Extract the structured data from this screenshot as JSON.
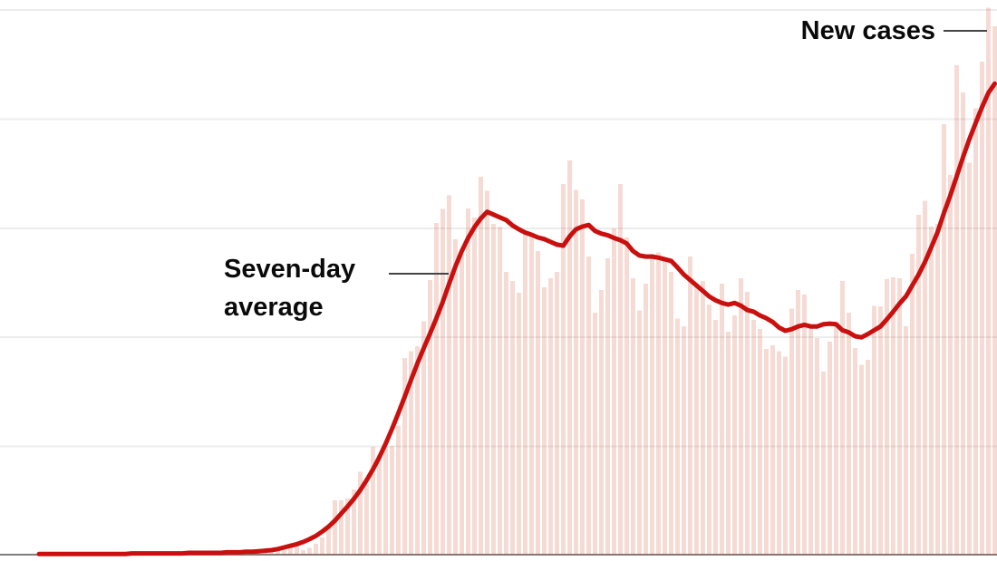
{
  "chart_data": {
    "type": "combo-bar-line",
    "title": "",
    "xlabel": "",
    "ylabel": "",
    "x_tick_labels": [],
    "ylim": [
      0,
      102
    ],
    "gridline_values": [
      20,
      40,
      60,
      80,
      100
    ],
    "grid": "horizontal",
    "legend": "inline annotations with leader lines",
    "scale_note": "no numeric axis labels shown; values are relative with top gridline = 100",
    "series": [
      {
        "name": "New cases",
        "type": "bar",
        "color": "#f6dbd6",
        "values": [
          0.2,
          0.3,
          0.2,
          0.3,
          0.3,
          0.2,
          0.3,
          0.3,
          0.4,
          0.3,
          0.3,
          0.4,
          0.3,
          0.4,
          0.4,
          0.3,
          0.4,
          0.4,
          0.5,
          0.4,
          0.4,
          0.5,
          0.4,
          0.5,
          0.5,
          0.4,
          0.5,
          0.6,
          0.5,
          0.6,
          0.6,
          0.5,
          0.7,
          0.6,
          0.8,
          0.8,
          0.9,
          1.0,
          1.1,
          1.6,
          1.9,
          1.0,
          1.4,
          2.2,
          3.3,
          5.5,
          10.1,
          10.1,
          10.5,
          12.1,
          15.4,
          13.0,
          19.9,
          18.5,
          20.0,
          20.1,
          23.8,
          36.2,
          37.5,
          38.4,
          42.9,
          50.5,
          61.0,
          63.5,
          66.0,
          58.0,
          55.3,
          63.6,
          62.0,
          69.4,
          66.9,
          60.8,
          60.3,
          52.0,
          50.3,
          48.2,
          59.0,
          58.6,
          55.8,
          49.2,
          50.8,
          52.0,
          68.1,
          72.4,
          67.0,
          65.3,
          54.8,
          44.5,
          48.7,
          54.5,
          60.0,
          68.1,
          58.3,
          50.8,
          44.9,
          49.8,
          55.3,
          55.6,
          54.2,
          52.0,
          43.4,
          42.0,
          54.8,
          49.8,
          50.3,
          46.0,
          43.2,
          49.8,
          41.0,
          44.0,
          50.8,
          48.3,
          43.2,
          41.5,
          37.9,
          38.5,
          37.5,
          36.5,
          45.3,
          48.7,
          47.8,
          42.0,
          39.9,
          33.7,
          39.2,
          42.0,
          50.3,
          44.5,
          38.0,
          35.0,
          35.9,
          45.8,
          45.7,
          50.7,
          51.0,
          50.8,
          42.0,
          55.3,
          62.5,
          65.0,
          60.3,
          60.8,
          79.1,
          69.8,
          89.9,
          84.9,
          72.0,
          82.0,
          90.5,
          100.4,
          97.0
        ]
      },
      {
        "name": "Seven-day average",
        "type": "line",
        "color": "#c9100e",
        "values": [
          0.3,
          0.3,
          0.3,
          0.3,
          0.3,
          0.3,
          0.3,
          0.3,
          0.3,
          0.3,
          0.3,
          0.3,
          0.3,
          0.3,
          0.4,
          0.4,
          0.4,
          0.4,
          0.4,
          0.4,
          0.4,
          0.4,
          0.4,
          0.5,
          0.5,
          0.5,
          0.5,
          0.5,
          0.5,
          0.6,
          0.6,
          0.6,
          0.7,
          0.7,
          0.8,
          0.9,
          1.0,
          1.2,
          1.5,
          1.8,
          2.1,
          2.5,
          3.0,
          3.6,
          4.4,
          5.3,
          6.4,
          7.7,
          9.0,
          10.4,
          12.0,
          13.8,
          15.8,
          18.0,
          20.5,
          23.2,
          26.1,
          29.1,
          32.2,
          35.2,
          38.0,
          40.7,
          43.5,
          46.5,
          49.8,
          53.0,
          55.8,
          58.2,
          60.2,
          61.8,
          63.0,
          62.5,
          62.0,
          61.5,
          60.5,
          59.8,
          59.2,
          58.8,
          58.3,
          58.0,
          57.5,
          57.0,
          56.8,
          58.5,
          59.8,
          60.3,
          60.6,
          59.5,
          59.0,
          58.7,
          58.2,
          57.8,
          57.2,
          55.8,
          55.0,
          54.8,
          54.8,
          54.6,
          54.3,
          54.0,
          52.8,
          51.5,
          50.5,
          49.5,
          48.5,
          47.5,
          46.8,
          46.3,
          46.0,
          46.3,
          45.8,
          45.0,
          44.7,
          44.0,
          43.5,
          42.8,
          41.8,
          41.2,
          41.5,
          42.0,
          42.3,
          42.0,
          42.0,
          42.4,
          42.5,
          42.4,
          41.3,
          40.9,
          40.2,
          40.0,
          40.6,
          41.3,
          42.0,
          43.3,
          44.7,
          46.2,
          47.5,
          49.5,
          51.5,
          53.8,
          56.5,
          59.3,
          62.8,
          66.0,
          69.5,
          73.0,
          76.3,
          79.3,
          82.2,
          84.8,
          86.5
        ]
      }
    ],
    "annotations": [
      {
        "id": "new-cases",
        "text": "New cases"
      },
      {
        "id": "seven-day-average",
        "text": "Seven-day average"
      }
    ]
  },
  "colors": {
    "background": "#ffffff",
    "bar_fill": "rgba(213,85,58,0.21)",
    "bar_effective": "#f6dbd6",
    "line": "#c9100e",
    "gridline": "#ececec",
    "axis": "#7d7d7d",
    "leader": "#444444",
    "label_text": "#0a0a0a"
  }
}
